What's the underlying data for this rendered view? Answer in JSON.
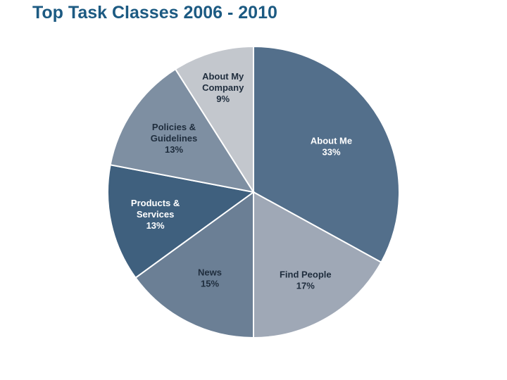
{
  "slide": {
    "title": "Top Task Classes 2006 - 2010"
  },
  "chart_data": {
    "type": "pie",
    "title": "Top Task Classes 2006 - 2010",
    "start": "12 o'clock",
    "direction": "clockwise",
    "slices": [
      {
        "name": "About Me",
        "lines": [
          "About Me",
          "33%"
        ],
        "value": 33,
        "color": "#536f8b",
        "text_color": "#ffffff"
      },
      {
        "name": "Find People",
        "lines": [
          "Find People",
          "17%"
        ],
        "value": 17,
        "color": "#9fa8b6",
        "text_color": "#1f2d3d"
      },
      {
        "name": "News",
        "lines": [
          "News",
          "15%"
        ],
        "value": 15,
        "color": "#6b7f95",
        "text_color": "#1f2d3d"
      },
      {
        "name": "Products & Services",
        "lines": [
          "Products &",
          "Services",
          "13%"
        ],
        "value": 13,
        "color": "#3f607e",
        "text_color": "#ffffff"
      },
      {
        "name": "Policies & Guidelines",
        "lines": [
          "Policies &",
          "Guidelines",
          "13%"
        ],
        "value": 13,
        "color": "#7e8fa2",
        "text_color": "#1f2d3d"
      },
      {
        "name": "About My Company",
        "lines": [
          "About My",
          "Company",
          "9%"
        ],
        "value": 9,
        "color": "#c3c7cd",
        "text_color": "#1f2d3d"
      }
    ]
  }
}
